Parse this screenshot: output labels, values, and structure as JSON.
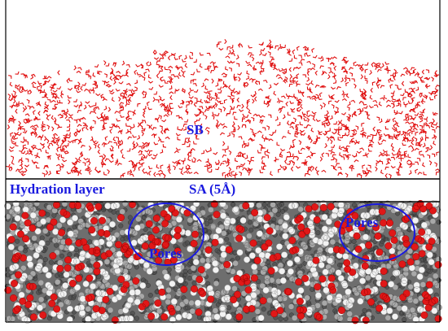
{
  "labels": {
    "solvent_bulk": "SB",
    "hydration_layer": "Hydration layer",
    "adsorbent": "SA (5Å)",
    "pores": [
      "Pores",
      "Pores"
    ]
  }
}
